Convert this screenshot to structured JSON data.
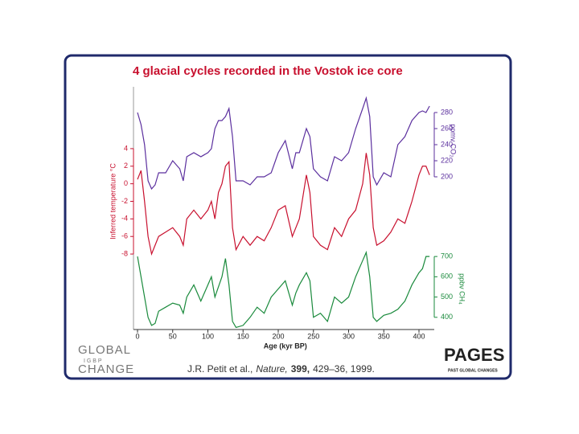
{
  "slide": {
    "title": "4 glacial cycles recorded in the Vostok ice core",
    "citation": {
      "authors": "J.R. Petit et al.,",
      "journal": "Nature,",
      "volume": "399,",
      "pages": "429–36, 1999."
    },
    "logo_left": {
      "top": "GLOBAL",
      "middle": "I G B P",
      "bottom": "CHANGE"
    },
    "logo_right": {
      "name": "PAGES",
      "subtitle": "PAST GLOBAL CHANGES"
    }
  },
  "chart_data": [
    {
      "type": "line",
      "ylabel": "ppmv CO₂",
      "color": "#5b2f9e",
      "yaxis_side": "right",
      "xlim": [
        0,
        420
      ],
      "ylim": [
        190,
        300
      ],
      "yticks": [
        200,
        220,
        240,
        260,
        280
      ],
      "x": [
        0,
        5,
        10,
        15,
        20,
        25,
        30,
        40,
        50,
        60,
        65,
        70,
        80,
        90,
        100,
        105,
        110,
        115,
        120,
        125,
        130,
        135,
        140,
        150,
        160,
        170,
        180,
        190,
        200,
        210,
        220,
        225,
        230,
        240,
        245,
        250,
        260,
        270,
        280,
        290,
        300,
        310,
        320,
        325,
        330,
        335,
        340,
        350,
        360,
        370,
        380,
        390,
        400,
        405,
        410,
        415
      ],
      "values": [
        280,
        265,
        240,
        195,
        185,
        190,
        205,
        205,
        220,
        210,
        195,
        225,
        230,
        225,
        230,
        235,
        260,
        270,
        270,
        275,
        285,
        250,
        195,
        195,
        190,
        200,
        200,
        205,
        230,
        245,
        210,
        230,
        230,
        260,
        250,
        210,
        200,
        195,
        225,
        220,
        230,
        260,
        285,
        298,
        275,
        200,
        190,
        205,
        200,
        240,
        250,
        270,
        280,
        282,
        280,
        288
      ]
    },
    {
      "type": "line",
      "ylabel": "Inferred temperature °C",
      "color": "#c8102e",
      "yaxis_side": "left",
      "xlim": [
        0,
        420
      ],
      "ylim": [
        -9,
        5
      ],
      "yticks": [
        4,
        2,
        0,
        -2,
        -4,
        -6,
        -8
      ],
      "x": [
        0,
        5,
        10,
        15,
        20,
        25,
        30,
        40,
        50,
        60,
        65,
        70,
        80,
        90,
        100,
        105,
        110,
        115,
        120,
        125,
        130,
        135,
        140,
        150,
        160,
        170,
        180,
        190,
        200,
        210,
        220,
        225,
        230,
        240,
        245,
        250,
        260,
        270,
        280,
        290,
        300,
        310,
        320,
        325,
        330,
        335,
        340,
        350,
        360,
        370,
        380,
        390,
        400,
        405,
        410,
        415
      ],
      "values": [
        0.5,
        1.5,
        -2,
        -6,
        -8,
        -7,
        -6,
        -5.5,
        -5,
        -6,
        -7,
        -4,
        -3,
        -4,
        -3,
        -2,
        -4,
        -1,
        0,
        2,
        2.5,
        -5,
        -7.5,
        -6,
        -7,
        -6,
        -6.5,
        -5,
        -3,
        -2.5,
        -6,
        -5,
        -4,
        1,
        -1,
        -6,
        -7,
        -7.5,
        -5,
        -6,
        -4,
        -3,
        0,
        3.5,
        1,
        -5,
        -7,
        -6.5,
        -5.5,
        -4,
        -4.5,
        -2,
        1,
        2,
        2,
        1
      ]
    },
    {
      "type": "line",
      "ylabel": "ppbv CH₄",
      "xlabel": "Age (kyr BP)",
      "color": "#1a8a3c",
      "yaxis_side": "right",
      "xlim": [
        0,
        420
      ],
      "xticks": [
        0,
        50,
        100,
        150,
        200,
        250,
        300,
        350,
        400
      ],
      "ylim": [
        320,
        760
      ],
      "yticks": [
        400,
        500,
        600,
        700
      ],
      "x": [
        0,
        5,
        10,
        15,
        20,
        25,
        30,
        40,
        50,
        60,
        65,
        70,
        80,
        90,
        100,
        105,
        110,
        115,
        120,
        125,
        130,
        135,
        140,
        150,
        160,
        170,
        180,
        190,
        200,
        210,
        220,
        225,
        230,
        240,
        245,
        250,
        260,
        270,
        280,
        290,
        300,
        310,
        320,
        325,
        330,
        335,
        340,
        350,
        360,
        370,
        380,
        390,
        400,
        405,
        410,
        415
      ],
      "values": [
        700,
        600,
        500,
        400,
        360,
        370,
        430,
        450,
        470,
        460,
        420,
        500,
        560,
        480,
        560,
        600,
        500,
        550,
        600,
        690,
        560,
        380,
        350,
        360,
        400,
        450,
        420,
        500,
        540,
        580,
        460,
        520,
        560,
        620,
        580,
        400,
        420,
        380,
        500,
        470,
        500,
        600,
        680,
        720,
        600,
        400,
        380,
        410,
        420,
        440,
        480,
        560,
        620,
        640,
        700,
        700
      ]
    }
  ]
}
